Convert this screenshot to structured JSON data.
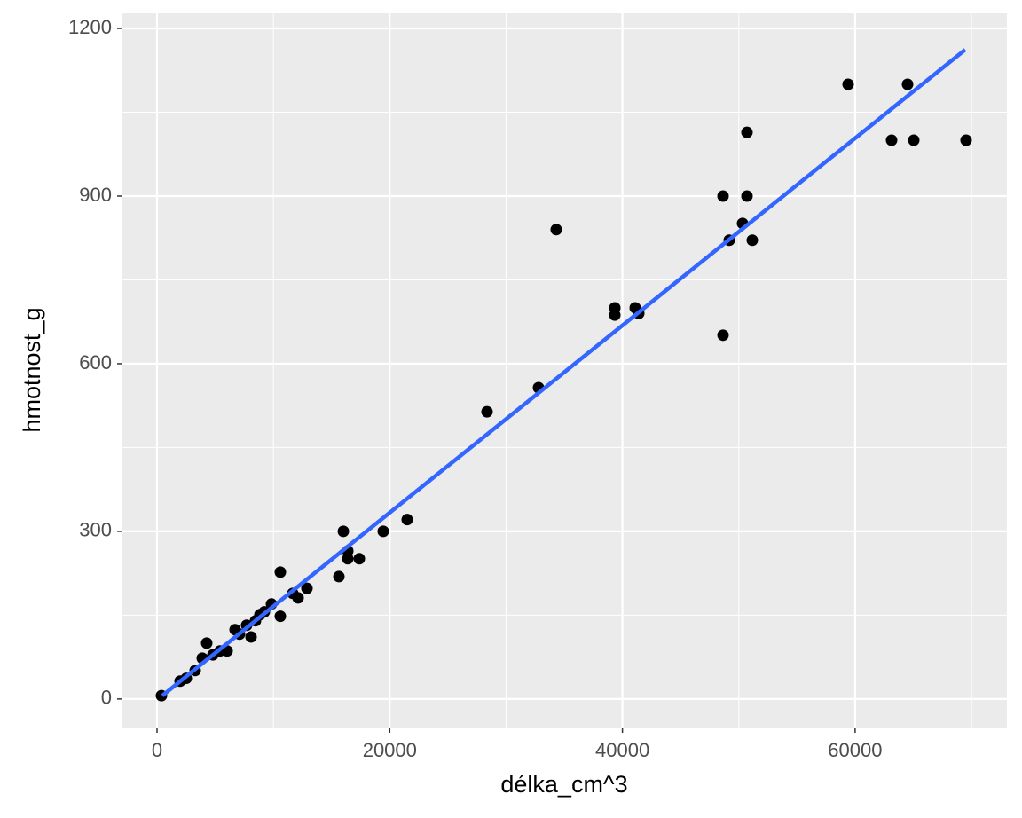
{
  "chart_data": {
    "type": "scatter",
    "x_label": "délka_cm^3",
    "y_label": "hmotnost_g",
    "xlim": [
      -2974,
      73046
    ],
    "ylim": [
      -51,
      1227
    ],
    "xticks": [
      0,
      20000,
      40000,
      60000
    ],
    "yticks": [
      0,
      300,
      600,
      900,
      1200
    ],
    "x_minor_grid": [
      10000,
      30000,
      50000,
      70000
    ],
    "y_minor_grid": [
      150,
      450,
      750,
      1050
    ],
    "grid": true,
    "panel_color": "#ebebeb",
    "series": [
      {
        "color": "#000000",
        "x": [
          381,
          1983,
          2516,
          3279,
          3889,
          4270,
          4804,
          5414,
          6024,
          6710,
          7091,
          7700,
          8082,
          8463,
          8845,
          9226,
          9836,
          10598,
          10598,
          11665,
          12123,
          12885,
          15631,
          16012,
          16393,
          16393,
          17384,
          19443,
          21502,
          28364,
          32787,
          34312,
          39344,
          39344,
          41098,
          41403,
          48647,
          48647,
          49180,
          50324,
          50705,
          50705,
          51162,
          59397,
          63133,
          64506,
          65039,
          69537
        ],
        "values": [
          6,
          32,
          37,
          51,
          73,
          100,
          79,
          86,
          86,
          124,
          116,
          132,
          111,
          140,
          151,
          156,
          170,
          227,
          148,
          189,
          181,
          198,
          219,
          300,
          265,
          251,
          251,
          300,
          321,
          514,
          557,
          840,
          700,
          687,
          700,
          690,
          651,
          900,
          821,
          851,
          900,
          1014,
          821,
          1100,
          1000,
          1100,
          1000,
          1000
        ]
      },
      {
        "type": "line",
        "color": "#3366ff",
        "x": [
          457,
          69461
        ],
        "values": [
          6,
          1162
        ]
      }
    ]
  }
}
